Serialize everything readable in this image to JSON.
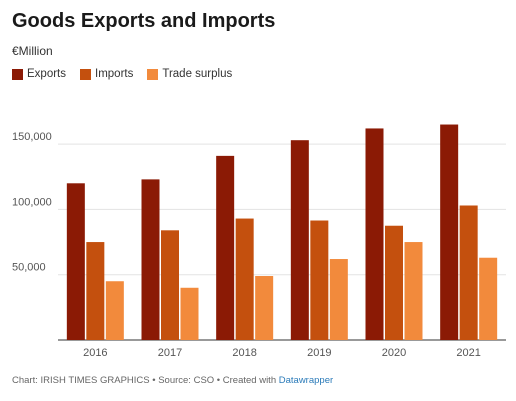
{
  "title": "Goods Exports and Imports",
  "subtitle": "€Million",
  "footer": {
    "text": "Chart: IRISH TIMES GRAPHICS • Source: CSO • Created with ",
    "link": "Datawrapper"
  },
  "chart_data": {
    "type": "bar",
    "categories": [
      "2016",
      "2017",
      "2018",
      "2019",
      "2020",
      "2021"
    ],
    "series": [
      {
        "name": "Exports",
        "color": "#8b1a05",
        "values": [
          120000,
          123000,
          141000,
          153000,
          162000,
          165000
        ]
      },
      {
        "name": "Imports",
        "color": "#c4500e",
        "values": [
          75000,
          84000,
          93000,
          91500,
          87500,
          103000
        ]
      },
      {
        "name": "Trade surplus",
        "color": "#f28a3c",
        "values": [
          45000,
          40000,
          49000,
          62000,
          75000,
          63000
        ]
      }
    ],
    "y_ticks": [
      {
        "value": 50000,
        "label": "50,000"
      },
      {
        "value": 100000,
        "label": "100,000"
      },
      {
        "value": 150000,
        "label": "150,000"
      }
    ],
    "ylim": [
      0,
      170000
    ],
    "grid": true,
    "legend_position": "top-left"
  }
}
